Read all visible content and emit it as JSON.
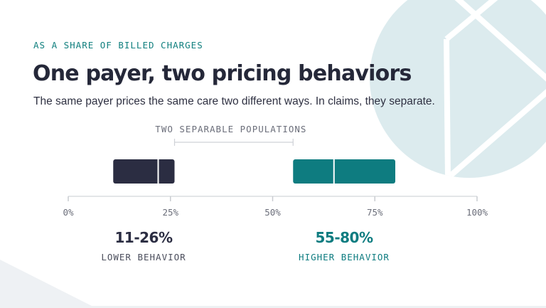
{
  "header": {
    "eyebrow": "AS A SHARE OF BILLED CHARGES",
    "title": "One payer, two pricing behaviors",
    "subtitle": "The same payer prices the same care two different ways. In claims, they separate."
  },
  "chart_data": {
    "type": "range-bar",
    "xlim": [
      0,
      100
    ],
    "x_ticks": [
      0,
      25,
      50,
      75,
      100
    ],
    "x_tick_labels": [
      "0%",
      "25%",
      "50%",
      "75%",
      "100%"
    ],
    "gap_annotation": "TWO SEPARABLE POPULATIONS",
    "grid": false,
    "series": [
      {
        "name": "LOWER BEHAVIOR",
        "low": 11,
        "high": 26,
        "mid": 22,
        "range_label": "11-26%",
        "color": "#2b2d42"
      },
      {
        "name": "HIGHER BEHAVIOR",
        "low": 55,
        "high": 80,
        "mid": 65,
        "range_label": "55-80%",
        "color": "#0e7c80"
      }
    ]
  },
  "colors": {
    "accent": "#12807f",
    "dark": "#2b2d42",
    "teal": "#0e7c80",
    "axis": "#d4d7dc",
    "background_shape": "#dcebee"
  }
}
